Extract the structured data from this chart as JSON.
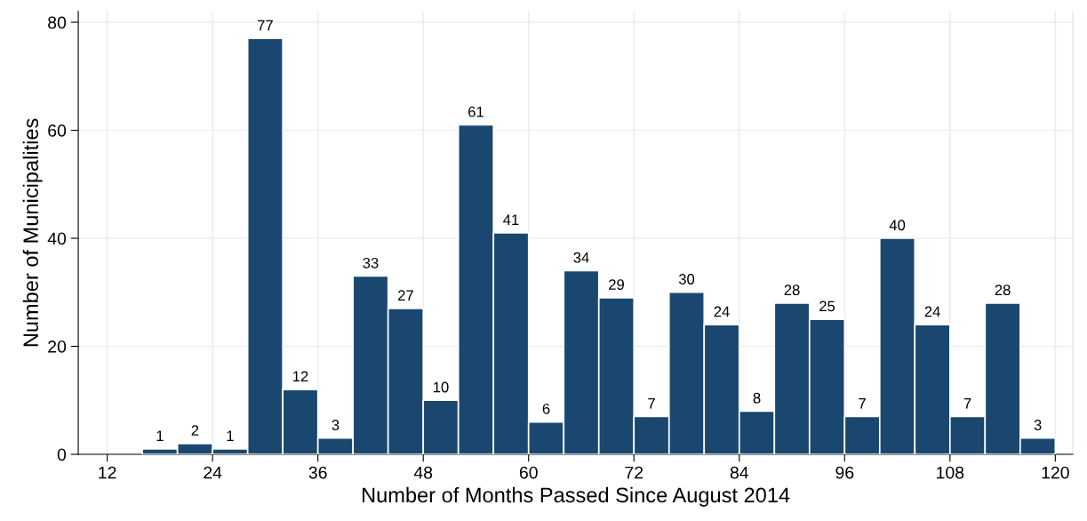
{
  "chart_data": {
    "type": "histogram",
    "xlabel": "Number of Months Passed Since August 2014",
    "ylabel": "Number of Municipalities",
    "bins": [
      16,
      20,
      24,
      28,
      32,
      36,
      40,
      44,
      48,
      52,
      56,
      60,
      64,
      68,
      72,
      76,
      80,
      84,
      88,
      92,
      96,
      100,
      104,
      108,
      112,
      116,
      120
    ],
    "values": [
      1,
      2,
      1,
      77,
      12,
      3,
      33,
      27,
      10,
      61,
      41,
      6,
      34,
      29,
      7,
      30,
      24,
      8,
      28,
      25,
      7,
      40,
      24,
      7,
      28,
      3
    ],
    "color": "#1a476f",
    "xlim": [
      8.7,
      122
    ],
    "xticks": [
      12,
      24,
      36,
      48,
      60,
      72,
      84,
      96,
      108,
      120
    ],
    "ylim": [
      0,
      82
    ],
    "yticks": [
      0,
      20,
      40,
      60,
      80
    ],
    "grid": true,
    "data_labels": true
  }
}
